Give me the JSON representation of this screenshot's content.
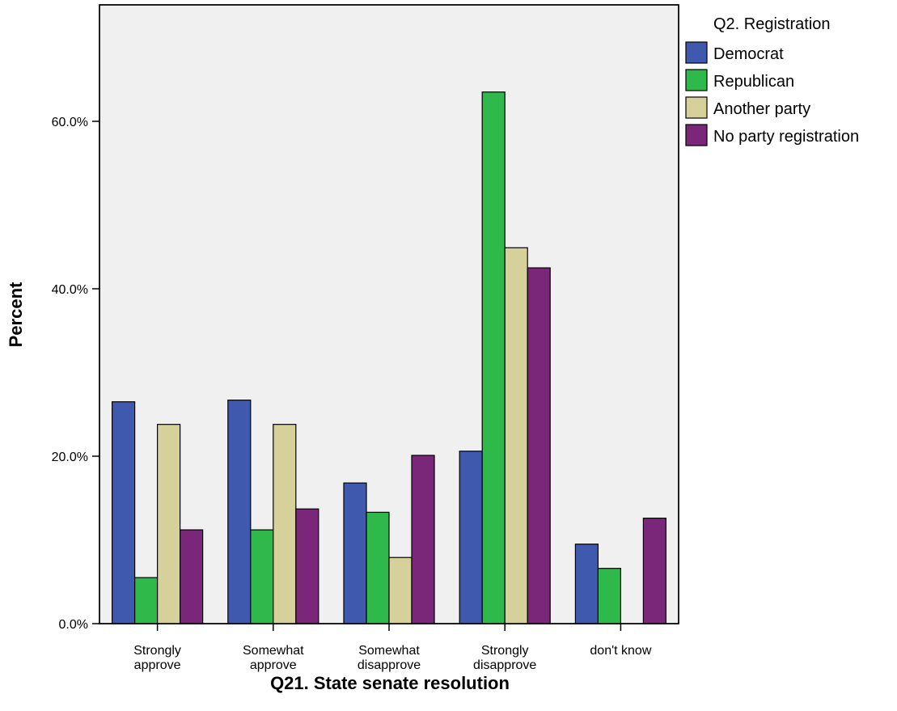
{
  "chart_data": {
    "type": "bar",
    "title": "",
    "xlabel": "Q21. State senate resolution",
    "ylabel": "Percent",
    "ylim": [
      0,
      73
    ],
    "yticks": [
      0,
      20,
      40,
      60
    ],
    "ytick_labels": [
      "0.0%",
      "20.0%",
      "40.0%",
      "60.0%"
    ],
    "grid": false,
    "legend_position": "top-right, outside plot",
    "legend_title": "Q2. Registration",
    "categories": [
      [
        "Strongly",
        "approve"
      ],
      [
        "Somewhat",
        "approve"
      ],
      [
        "Somewhat",
        "disapprove"
      ],
      [
        "Strongly",
        "disapprove"
      ],
      [
        "don't know"
      ]
    ],
    "series": [
      {
        "name": "Democrat",
        "color": "#3f59ae",
        "values": [
          26.5,
          26.7,
          16.8,
          20.6,
          9.5
        ]
      },
      {
        "name": "Republican",
        "color": "#2fb94a",
        "values": [
          5.5,
          11.2,
          13.3,
          63.5,
          6.6
        ]
      },
      {
        "name": "Another party",
        "color": "#d6d19a",
        "values": [
          23.8,
          23.8,
          7.9,
          44.9,
          0
        ]
      },
      {
        "name": "No party registration",
        "color": "#7a2779",
        "values": [
          11.2,
          13.7,
          20.1,
          42.5,
          12.6
        ]
      }
    ],
    "plot_background": "#f0f0f0"
  }
}
